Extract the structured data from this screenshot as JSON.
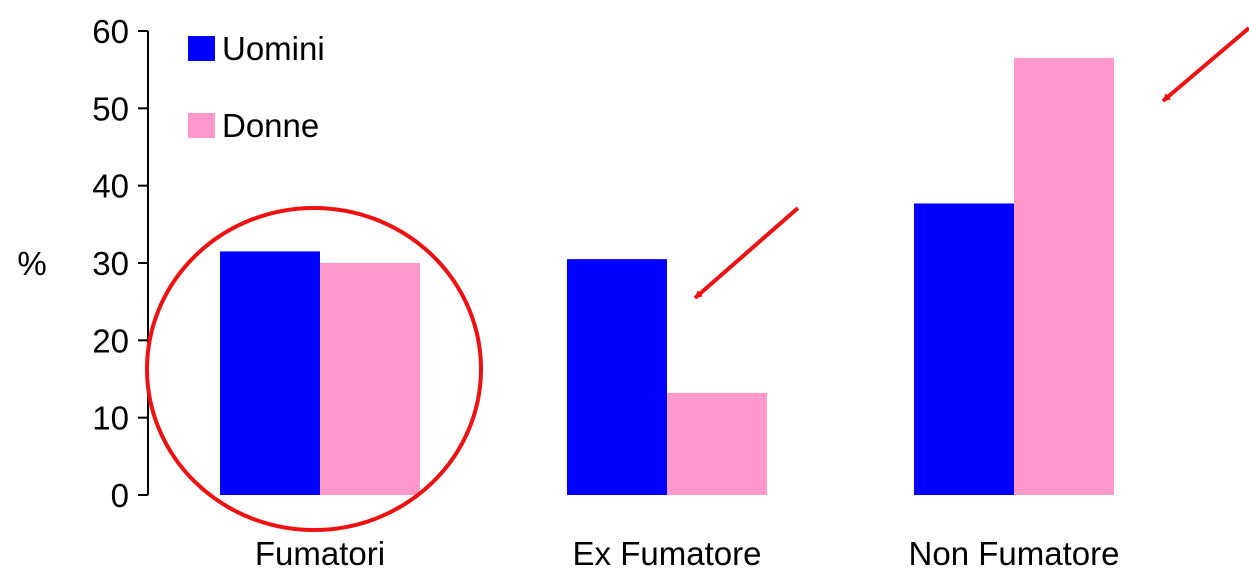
{
  "chart_data": {
    "type": "bar",
    "title": "",
    "xlabel": "",
    "ylabel": "%",
    "ylim": [
      0,
      60
    ],
    "yticks": [
      0,
      10,
      20,
      30,
      40,
      50,
      60
    ],
    "grid": false,
    "legend_position": "top-left",
    "categories": [
      "Fumatori",
      "Ex Fumatore",
      "Non Fumatore"
    ],
    "series": [
      {
        "name": "Uomini",
        "color": "#0000ff",
        "values": [
          31.5,
          30.5,
          37.7
        ]
      },
      {
        "name": "Donne",
        "color": "#ff99cc",
        "values": [
          30.0,
          13.2,
          56.5
        ]
      }
    ],
    "annotations": {
      "highlight_circle_category": "Fumatori",
      "arrow_color": "#ee1111",
      "arrows_point_to": [
        {
          "category": "Ex Fumatore",
          "series": "Donne"
        },
        {
          "category": "Non Fumatore",
          "series": "Donne"
        }
      ]
    }
  }
}
